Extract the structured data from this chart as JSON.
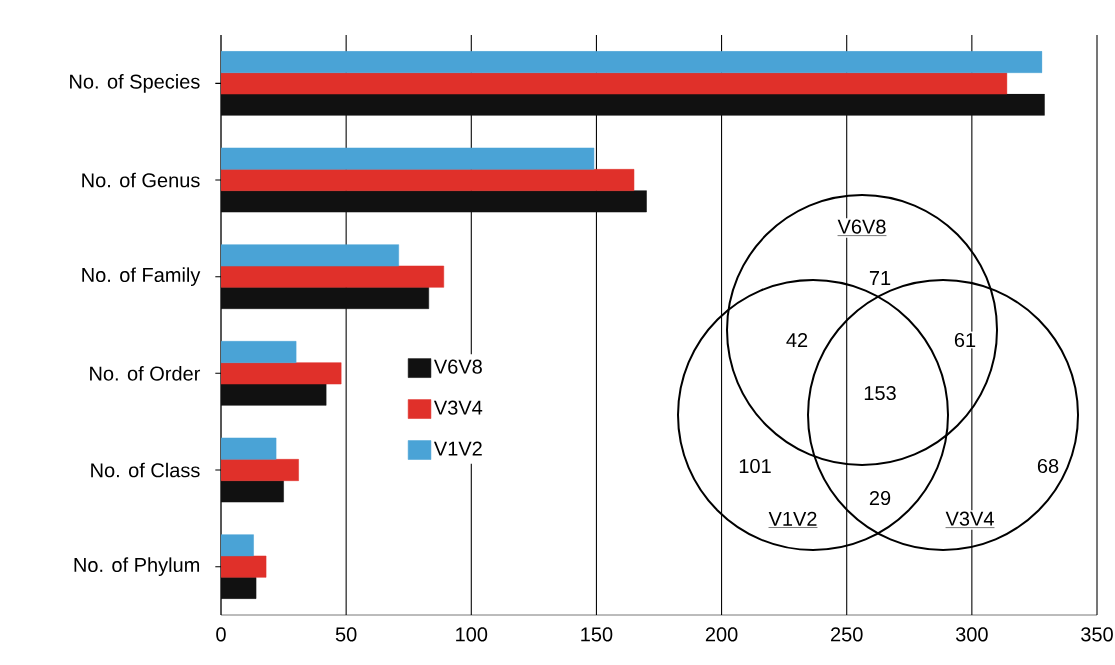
{
  "chart_data": [
    {
      "type": "bar",
      "orientation": "horizontal",
      "categories": [
        "No. of Species",
        "No. of Genus",
        "No. of Family",
        "No. of Order",
        "No. of Class",
        "No. of Phylum"
      ],
      "series": [
        {
          "name": "V6V8",
          "color": "#111111",
          "values": [
            329,
            170,
            83,
            42,
            25,
            14
          ]
        },
        {
          "name": "V3V4",
          "color": "#e0302a",
          "values": [
            314,
            165,
            89,
            48,
            31,
            18
          ]
        },
        {
          "name": "V1V2",
          "color": "#4aa3d6",
          "values": [
            328,
            149,
            71,
            30,
            22,
            13
          ]
        }
      ],
      "xlim": [
        0,
        350
      ],
      "xticks": [
        0,
        50,
        100,
        150,
        200,
        250,
        300,
        350
      ],
      "grid": "x",
      "legend": "left"
    },
    {
      "type": "other",
      "annotations": [
        "V6V8",
        "71",
        "42",
        "61",
        "153",
        "101",
        "29",
        "68",
        "V1V2",
        "V3V4"
      ]
    }
  ]
}
